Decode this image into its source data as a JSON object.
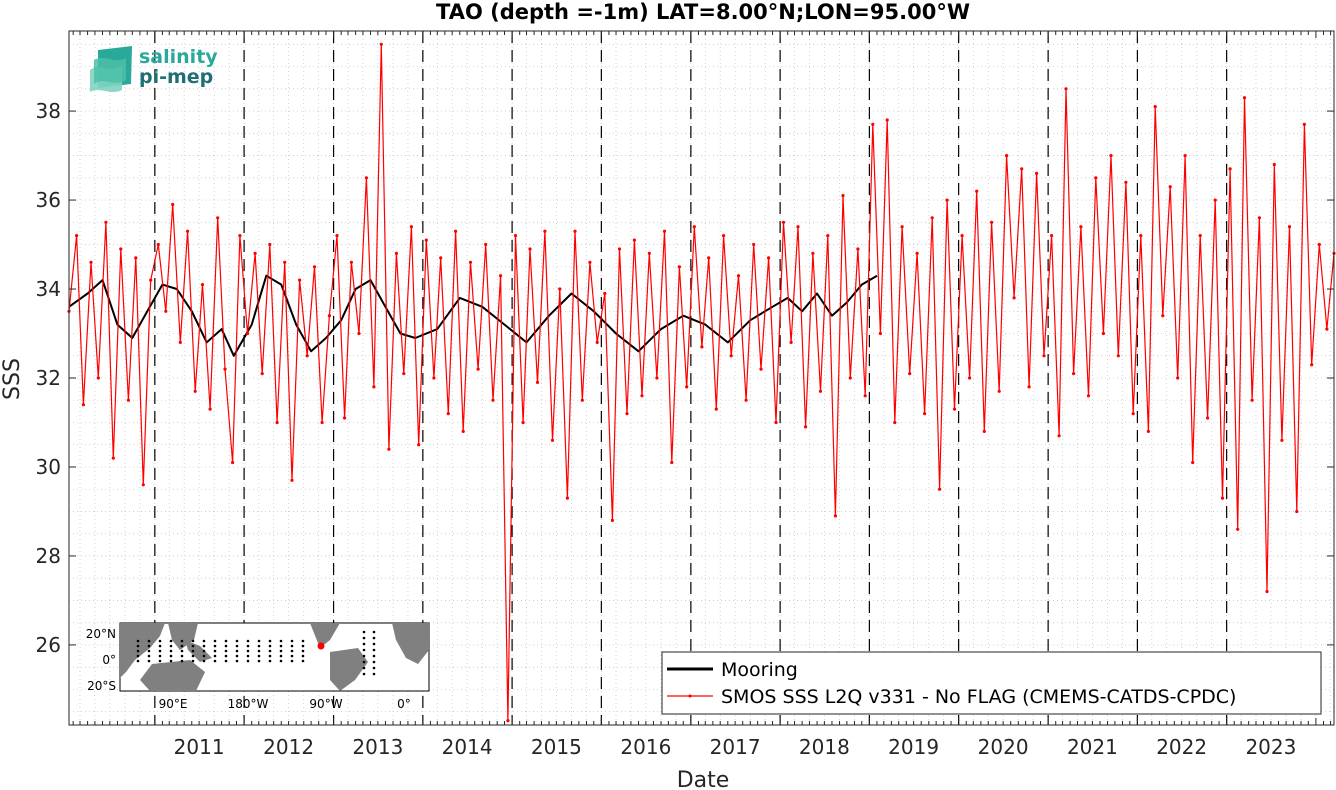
{
  "logo": {
    "line1": "salinity",
    "line2": "pi-mep",
    "color1": "#2aa89a",
    "color2": "#1f6f75"
  },
  "inset_map": {
    "lat_labels": [
      "20°N",
      "0°",
      "20°S"
    ],
    "lon_labels": [
      "90°E",
      "180°W",
      "90°W",
      "0°"
    ],
    "land_color": "#808080",
    "buoy_color": "#000000",
    "highlight_color": "#ff0000"
  },
  "chart_data": {
    "type": "line",
    "title": "TAO (depth =-1m) LAT=8.00°N;LON=95.00°W",
    "xlabel": "Date",
    "ylabel": "SSS",
    "x_range": [
      "2010-01-15",
      "2024-03-15"
    ],
    "ylim": [
      24.2,
      39.8
    ],
    "yticks": [
      26,
      28,
      30,
      32,
      34,
      36,
      38
    ],
    "xticks": [
      "2011",
      "2012",
      "2013",
      "2014",
      "2015",
      "2016",
      "2017",
      "2018",
      "2019",
      "2020",
      "2021",
      "2022",
      "2023"
    ],
    "year_boundaries": [
      "2011-01-01",
      "2012-01-01",
      "2013-01-01",
      "2014-01-01",
      "2015-01-01",
      "2016-01-01",
      "2017-01-01",
      "2018-01-01",
      "2019-01-01",
      "2020-01-01",
      "2021-01-01",
      "2022-01-01",
      "2023-01-01"
    ],
    "grid": true,
    "legend_position": "bottom-right",
    "series": [
      {
        "name": "Mooring",
        "color": "#000000",
        "x": [
          "2010-01-15",
          "2010-04-01",
          "2010-06-01",
          "2010-08-01",
          "2010-10-01",
          "2010-12-01",
          "2011-02-01",
          "2011-04-01",
          "2011-06-01",
          "2011-08-01",
          "2011-10-01",
          "2011-11-20",
          "2012-02-01",
          "2012-04-01",
          "2012-06-01",
          "2012-08-01",
          "2012-10-01",
          "2012-12-01",
          "2013-02-01",
          "2013-04-01",
          "2013-06-01",
          "2013-08-01",
          "2013-10-01",
          "2013-12-01",
          "2014-03-01",
          "2014-06-01",
          "2014-09-01",
          "2014-12-01",
          "2015-03-01",
          "2015-06-01",
          "2015-09-01",
          "2015-12-01",
          "2016-03-01",
          "2016-06-01",
          "2016-09-01",
          "2016-12-01",
          "2017-03-01",
          "2017-06-01",
          "2017-09-01",
          "2017-12-01",
          "2018-02-01",
          "2018-04-01",
          "2018-06-01",
          "2018-08-01",
          "2018-10-01",
          "2018-12-01",
          "2019-02-01"
        ],
        "y": [
          33.6,
          33.9,
          34.2,
          33.2,
          32.9,
          33.5,
          34.1,
          34.0,
          33.5,
          32.8,
          33.1,
          32.5,
          33.2,
          34.3,
          34.1,
          33.2,
          32.6,
          32.9,
          33.3,
          34.0,
          34.2,
          33.6,
          33.0,
          32.9,
          33.1,
          33.8,
          33.6,
          33.2,
          32.8,
          33.4,
          33.9,
          33.5,
          33.0,
          32.6,
          33.1,
          33.4,
          33.2,
          32.8,
          33.3,
          33.6,
          33.8,
          33.5,
          33.9,
          33.4,
          33.7,
          34.1,
          34.3
        ]
      },
      {
        "name": "SMOS SSS L2Q v331 - No FLAG  (CMEMS-CATDS-CPDC)",
        "color": "#ff0000",
        "x": [
          "2010-01-15",
          "2010-02-15",
          "2010-03-15",
          "2010-04-15",
          "2010-05-15",
          "2010-06-15",
          "2010-07-15",
          "2010-08-15",
          "2010-09-15",
          "2010-10-15",
          "2010-11-15",
          "2010-12-15",
          "2011-01-15",
          "2011-02-15",
          "2011-03-15",
          "2011-04-15",
          "2011-05-15",
          "2011-06-15",
          "2011-07-15",
          "2011-08-15",
          "2011-09-15",
          "2011-10-15",
          "2011-11-15",
          "2011-12-15",
          "2012-01-15",
          "2012-02-15",
          "2012-03-15",
          "2012-04-15",
          "2012-05-15",
          "2012-06-15",
          "2012-07-15",
          "2012-08-15",
          "2012-09-15",
          "2012-10-15",
          "2012-11-15",
          "2012-12-15",
          "2013-01-15",
          "2013-02-15",
          "2013-03-15",
          "2013-04-15",
          "2013-05-15",
          "2013-06-15",
          "2013-07-15",
          "2013-08-15",
          "2013-09-15",
          "2013-10-15",
          "2013-11-15",
          "2013-12-15",
          "2014-01-15",
          "2014-02-15",
          "2014-03-15",
          "2014-04-15",
          "2014-05-15",
          "2014-06-15",
          "2014-07-15",
          "2014-08-15",
          "2014-09-15",
          "2014-10-15",
          "2014-11-15",
          "2014-12-15",
          "2015-01-15",
          "2015-02-15",
          "2015-03-15",
          "2015-04-15",
          "2015-05-15",
          "2015-06-15",
          "2015-07-15",
          "2015-08-15",
          "2015-09-15",
          "2015-10-15",
          "2015-11-15",
          "2015-12-15",
          "2016-01-15",
          "2016-02-15",
          "2016-03-15",
          "2016-04-15",
          "2016-05-15",
          "2016-06-15",
          "2016-07-15",
          "2016-08-15",
          "2016-09-15",
          "2016-10-15",
          "2016-11-15",
          "2016-12-15",
          "2017-01-15",
          "2017-02-15",
          "2017-03-15",
          "2017-04-15",
          "2017-05-15",
          "2017-06-15",
          "2017-07-15",
          "2017-08-15",
          "2017-09-15",
          "2017-10-15",
          "2017-11-15",
          "2017-12-15",
          "2018-01-15",
          "2018-02-15",
          "2018-03-15",
          "2018-04-15",
          "2018-05-15",
          "2018-06-15",
          "2018-07-15",
          "2018-08-15",
          "2018-09-15",
          "2018-10-15",
          "2018-11-15",
          "2018-12-15",
          "2019-01-15",
          "2019-02-15",
          "2019-03-15",
          "2019-04-15",
          "2019-05-15",
          "2019-06-15",
          "2019-07-15",
          "2019-08-15",
          "2019-09-15",
          "2019-10-15",
          "2019-11-15",
          "2019-12-15",
          "2020-01-15",
          "2020-02-15",
          "2020-03-15",
          "2020-04-15",
          "2020-05-15",
          "2020-06-15",
          "2020-07-15",
          "2020-08-15",
          "2020-09-15",
          "2020-10-15",
          "2020-11-15",
          "2020-12-15",
          "2021-01-15",
          "2021-02-15",
          "2021-03-15",
          "2021-04-15",
          "2021-05-15",
          "2021-06-15",
          "2021-07-15",
          "2021-08-15",
          "2021-09-15",
          "2021-10-15",
          "2021-11-15",
          "2021-12-15",
          "2022-01-15",
          "2022-02-15",
          "2022-03-15",
          "2022-04-15",
          "2022-05-15",
          "2022-06-15",
          "2022-07-15",
          "2022-08-15",
          "2022-09-15",
          "2022-10-15",
          "2022-11-15",
          "2022-12-15",
          "2023-01-15",
          "2023-02-15",
          "2023-03-15",
          "2023-04-15",
          "2023-05-15",
          "2023-06-15",
          "2023-07-15",
          "2023-08-15",
          "2023-09-15",
          "2023-10-15",
          "2023-11-15",
          "2023-12-15",
          "2024-01-15",
          "2024-02-15",
          "2024-03-15"
        ],
        "y": [
          33.5,
          35.2,
          31.4,
          34.6,
          32.0,
          35.5,
          30.2,
          34.9,
          31.5,
          34.7,
          29.6,
          34.2,
          35.0,
          33.5,
          35.9,
          32.8,
          35.3,
          31.7,
          34.1,
          31.3,
          35.6,
          32.2,
          30.1,
          35.2,
          33.0,
          34.8,
          32.1,
          35.0,
          31.0,
          34.6,
          29.7,
          34.2,
          32.5,
          34.5,
          31.0,
          33.4,
          35.2,
          31.1,
          34.6,
          33.0,
          36.5,
          31.8,
          39.5,
          30.4,
          34.8,
          32.1,
          35.4,
          30.5,
          35.1,
          32.0,
          34.7,
          31.2,
          35.3,
          30.8,
          34.6,
          32.2,
          35.0,
          31.5,
          34.3,
          24.3,
          35.2,
          31.0,
          34.9,
          31.9,
          35.3,
          30.6,
          34.0,
          29.3,
          35.3,
          31.5,
          34.6,
          32.8,
          33.9,
          28.8,
          34.9,
          31.2,
          35.1,
          31.6,
          34.8,
          32.0,
          35.3,
          30.1,
          34.5,
          31.8,
          35.4,
          32.7,
          34.7,
          31.3,
          35.2,
          32.5,
          34.3,
          31.5,
          35.0,
          32.2,
          34.7,
          31.0,
          35.5,
          32.8,
          35.4,
          30.9,
          34.8,
          31.7,
          35.2,
          28.9,
          36.1,
          32.0,
          34.9,
          31.6,
          37.7,
          33.0,
          37.8,
          31.0,
          35.4,
          32.1,
          34.8,
          31.2,
          35.6,
          29.5,
          36.0,
          31.3,
          35.2,
          32.0,
          36.2,
          30.8,
          35.5,
          31.7,
          37.0,
          33.8,
          36.7,
          31.8,
          36.6,
          32.5,
          35.2,
          30.7,
          38.5,
          32.1,
          35.4,
          31.6,
          36.5,
          33.0,
          37.0,
          32.5,
          36.4,
          31.2,
          35.2,
          30.8,
          38.1,
          33.4,
          36.3,
          32.0,
          37.0,
          30.1,
          35.2,
          31.1,
          36.0,
          29.3,
          36.7,
          28.6,
          38.3,
          31.5,
          35.6,
          27.2,
          36.8,
          30.6,
          35.4,
          29.0,
          37.7,
          32.3,
          35.0,
          33.1,
          34.8
        ]
      }
    ]
  }
}
